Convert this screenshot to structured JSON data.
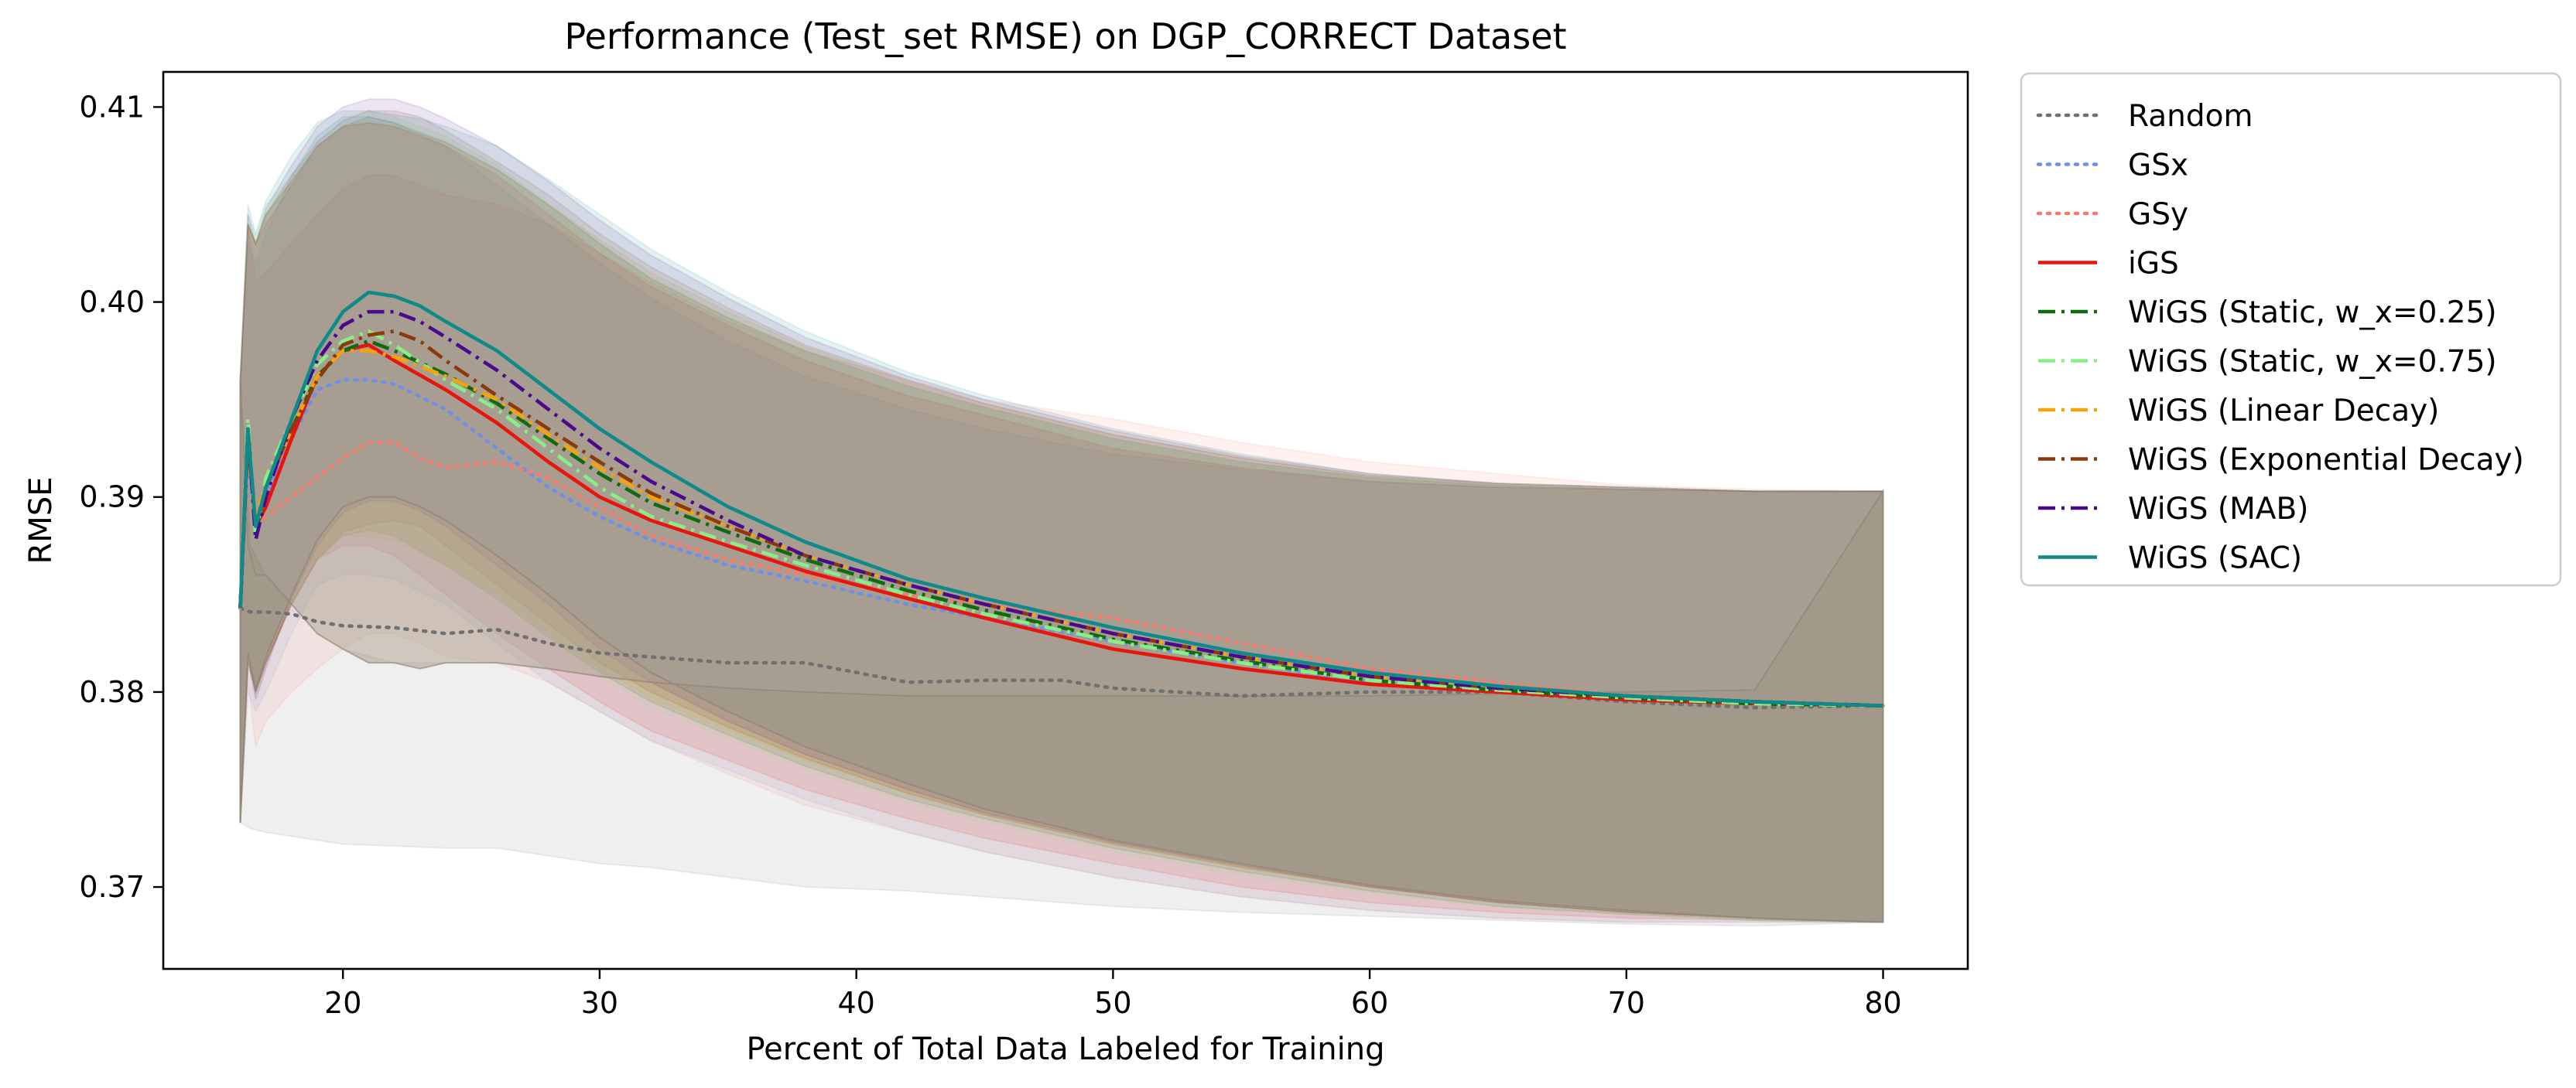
{
  "chart_data": {
    "type": "line",
    "title": "Performance (Test_set RMSE) on DGP_CORRECT Dataset",
    "xlabel": "Percent of Total Data Labeled for Training",
    "ylabel": "RMSE",
    "xlim": [
      13,
      83.3
    ],
    "ylim": [
      0.3658,
      0.4118
    ],
    "xticks": [
      20,
      30,
      40,
      50,
      60,
      70,
      80
    ],
    "xtick_labels": [
      "20",
      "30",
      "40",
      "50",
      "60",
      "70",
      "80"
    ],
    "yticks": [
      0.37,
      0.38,
      0.39,
      0.4,
      0.41
    ],
    "ytick_labels": [
      "0.37",
      "0.38",
      "0.39",
      "0.40",
      "0.41"
    ],
    "grid": false,
    "legend_position": "outside-right",
    "shaded_band": "mean ± std per series",
    "band_color": "#A59A8B",
    "series": [
      {
        "name": "Random",
        "color": "#707070",
        "dash": "dot",
        "x": [
          16,
          16.4,
          17,
          18,
          19,
          20,
          22,
          24,
          26,
          28,
          30,
          32,
          35,
          38,
          42,
          45,
          48,
          50,
          55,
          60,
          65,
          70,
          75,
          80
        ],
        "y": [
          0.3843,
          0.3841,
          0.3841,
          0.384,
          0.3836,
          0.3834,
          0.3833,
          0.383,
          0.3832,
          0.3825,
          0.382,
          0.3818,
          0.3815,
          0.3815,
          0.3805,
          0.3806,
          0.3806,
          0.3802,
          0.3798,
          0.38,
          0.38,
          0.3795,
          0.3792,
          0.3793
        ],
        "upper": [
          0.396,
          0.3875,
          0.386,
          0.3845,
          0.383,
          0.3822,
          0.3815,
          0.3815,
          0.3815,
          0.3812,
          0.3808,
          0.3805,
          0.3802,
          0.38,
          0.3798,
          0.3798,
          0.3798,
          0.3798,
          0.3798,
          0.3798,
          0.3799,
          0.38,
          0.3801,
          0.3903
        ],
        "lower": [
          0.3733,
          0.373,
          0.3728,
          0.3726,
          0.3724,
          0.3722,
          0.3721,
          0.372,
          0.372,
          0.3716,
          0.3712,
          0.371,
          0.3705,
          0.37,
          0.3698,
          0.3695,
          0.3692,
          0.369,
          0.3687,
          0.3685,
          0.3683,
          0.3681,
          0.368,
          0.3682
        ]
      },
      {
        "name": "GSx",
        "color": "#6F8FE8",
        "dash": "dot",
        "x": [
          16,
          16.3,
          16.6,
          17,
          18,
          19,
          20,
          21,
          22,
          24,
          26,
          28,
          30,
          32,
          35,
          38,
          42,
          45,
          50,
          55,
          60,
          65,
          70,
          75,
          80
        ],
        "y": [
          0.3843,
          0.392,
          0.3885,
          0.39,
          0.393,
          0.3955,
          0.396,
          0.396,
          0.3958,
          0.3945,
          0.3925,
          0.3905,
          0.389,
          0.3878,
          0.3865,
          0.3857,
          0.3845,
          0.3838,
          0.3826,
          0.3815,
          0.3805,
          0.38,
          0.3798,
          0.3795,
          0.3793
        ],
        "upper": [
          0.396,
          0.403,
          0.402,
          0.4035,
          0.4065,
          0.4085,
          0.4095,
          0.4095,
          0.4092,
          0.408,
          0.406,
          0.404,
          0.402,
          0.4002,
          0.398,
          0.3962,
          0.3945,
          0.3935,
          0.3922,
          0.3914,
          0.3908,
          0.3905,
          0.3904,
          0.3903,
          0.3903
        ],
        "lower": [
          0.3733,
          0.38,
          0.379,
          0.38,
          0.383,
          0.3855,
          0.386,
          0.386,
          0.3858,
          0.3845,
          0.3825,
          0.3805,
          0.379,
          0.3775,
          0.376,
          0.3745,
          0.3728,
          0.3718,
          0.3705,
          0.3695,
          0.3688,
          0.3684,
          0.3682,
          0.3682,
          0.3682
        ]
      },
      {
        "name": "GSy",
        "color": "#F47C6F",
        "dash": "dot",
        "x": [
          16,
          16.3,
          16.6,
          17,
          18,
          19,
          20,
          21,
          22,
          23,
          24,
          26,
          28,
          30,
          32,
          35,
          38,
          42,
          45,
          50,
          55,
          60,
          65,
          70,
          75,
          80
        ],
        "y": [
          0.3843,
          0.3925,
          0.3885,
          0.389,
          0.39,
          0.391,
          0.392,
          0.3928,
          0.3928,
          0.392,
          0.3915,
          0.3918,
          0.391,
          0.3895,
          0.388,
          0.3868,
          0.386,
          0.385,
          0.3845,
          0.3838,
          0.3825,
          0.3812,
          0.3805,
          0.3798,
          0.3795,
          0.3793
        ],
        "upper": [
          0.396,
          0.404,
          0.401,
          0.4015,
          0.403,
          0.4045,
          0.4058,
          0.4065,
          0.4065,
          0.406,
          0.4055,
          0.405,
          0.404,
          0.4025,
          0.401,
          0.399,
          0.3975,
          0.396,
          0.395,
          0.394,
          0.3928,
          0.3918,
          0.3912,
          0.3906,
          0.3904,
          0.3903
        ],
        "lower": [
          0.3733,
          0.3805,
          0.3772,
          0.3785,
          0.38,
          0.3812,
          0.3822,
          0.383,
          0.383,
          0.3825,
          0.3818,
          0.3815,
          0.3805,
          0.379,
          0.3775,
          0.3758,
          0.3742,
          0.3728,
          0.3718,
          0.3705,
          0.3695,
          0.3688,
          0.3684,
          0.3682,
          0.3682,
          0.3682
        ]
      },
      {
        "name": "iGS",
        "color": "#E8150F",
        "dash": "solid",
        "x": [
          16,
          16.3,
          16.6,
          17,
          18,
          19,
          20,
          21,
          22,
          24,
          26,
          28,
          30,
          32,
          35,
          38,
          42,
          45,
          50,
          55,
          60,
          65,
          70,
          75,
          80
        ],
        "y": [
          0.3843,
          0.3935,
          0.3885,
          0.3895,
          0.393,
          0.3962,
          0.3975,
          0.3978,
          0.397,
          0.3955,
          0.3938,
          0.3918,
          0.39,
          0.3888,
          0.3875,
          0.3862,
          0.3848,
          0.3838,
          0.3822,
          0.3812,
          0.3804,
          0.38,
          0.3796,
          0.3794,
          0.3793
        ],
        "upper": [
          0.396,
          0.404,
          0.403,
          0.404,
          0.406,
          0.408,
          0.409,
          0.4092,
          0.409,
          0.408,
          0.4065,
          0.4045,
          0.4025,
          0.4008,
          0.3988,
          0.397,
          0.3952,
          0.3942,
          0.3925,
          0.3915,
          0.3908,
          0.3905,
          0.3904,
          0.3903,
          0.3903
        ],
        "lower": [
          0.3733,
          0.382,
          0.38,
          0.3815,
          0.3845,
          0.3868,
          0.3875,
          0.3875,
          0.387,
          0.385,
          0.383,
          0.3812,
          0.3795,
          0.378,
          0.3765,
          0.375,
          0.3735,
          0.3725,
          0.3712,
          0.37,
          0.3692,
          0.3687,
          0.3684,
          0.3683,
          0.3682
        ]
      },
      {
        "name": "WiGS (Static, w_x=0.25)",
        "color": "#0E6B0E",
        "dash": "dashdot",
        "x": [
          16,
          16.3,
          16.6,
          17,
          18,
          19,
          20,
          21,
          22,
          24,
          26,
          28,
          30,
          32,
          35,
          38,
          42,
          45,
          50,
          55,
          60,
          65,
          70,
          75,
          80
        ],
        "y": [
          0.3843,
          0.3935,
          0.3882,
          0.3905,
          0.3935,
          0.3962,
          0.3975,
          0.398,
          0.3975,
          0.3963,
          0.3948,
          0.393,
          0.3912,
          0.3897,
          0.3882,
          0.3868,
          0.3852,
          0.3842,
          0.3827,
          0.3816,
          0.3806,
          0.3801,
          0.3797,
          0.3794,
          0.3793
        ],
        "upper": [
          0.396,
          0.404,
          0.403,
          0.4045,
          0.4062,
          0.408,
          0.409,
          0.4095,
          0.4092,
          0.4082,
          0.4068,
          0.405,
          0.403,
          0.4012,
          0.3992,
          0.3975,
          0.3957,
          0.3946,
          0.393,
          0.3918,
          0.391,
          0.3906,
          0.3904,
          0.3903,
          0.3903
        ],
        "lower": [
          0.3733,
          0.3815,
          0.38,
          0.3815,
          0.3845,
          0.3868,
          0.388,
          0.3883,
          0.388,
          0.3865,
          0.3848,
          0.3828,
          0.381,
          0.3795,
          0.3778,
          0.3762,
          0.3745,
          0.3735,
          0.372,
          0.3708,
          0.3698,
          0.369,
          0.3686,
          0.3683,
          0.3682
        ]
      },
      {
        "name": "WiGS (Static, w_x=0.75)",
        "color": "#88EE88",
        "dash": "dashdot",
        "x": [
          16,
          16.3,
          16.6,
          17,
          18,
          19,
          20,
          21,
          22,
          24,
          26,
          28,
          30,
          32,
          35,
          38,
          42,
          45,
          50,
          55,
          60,
          65,
          70,
          75,
          80
        ],
        "y": [
          0.3843,
          0.394,
          0.388,
          0.391,
          0.394,
          0.3968,
          0.398,
          0.3985,
          0.3978,
          0.396,
          0.3945,
          0.3925,
          0.3905,
          0.389,
          0.3877,
          0.3865,
          0.385,
          0.384,
          0.3826,
          0.3815,
          0.3806,
          0.3801,
          0.3797,
          0.3794,
          0.3793
        ],
        "upper": [
          0.396,
          0.4045,
          0.4035,
          0.405,
          0.4065,
          0.4085,
          0.4095,
          0.4098,
          0.4095,
          0.4085,
          0.407,
          0.405,
          0.403,
          0.4012,
          0.3992,
          0.3974,
          0.3956,
          0.3945,
          0.3929,
          0.3917,
          0.3909,
          0.3906,
          0.3904,
          0.3903,
          0.3903
        ],
        "lower": [
          0.3733,
          0.3818,
          0.3802,
          0.3818,
          0.3848,
          0.3872,
          0.3882,
          0.3885,
          0.388,
          0.3865,
          0.3848,
          0.3828,
          0.3808,
          0.3792,
          0.3776,
          0.376,
          0.3743,
          0.3733,
          0.3718,
          0.3706,
          0.3697,
          0.369,
          0.3686,
          0.3683,
          0.3682
        ]
      },
      {
        "name": "WiGS (Linear Decay)",
        "color": "#F5A30A",
        "dash": "dashdot",
        "x": [
          16,
          16.3,
          16.6,
          17,
          18,
          19,
          20,
          21,
          22,
          24,
          26,
          28,
          30,
          32,
          35,
          38,
          42,
          45,
          50,
          55,
          60,
          65,
          70,
          75,
          80
        ],
        "y": [
          0.3843,
          0.393,
          0.389,
          0.3905,
          0.3935,
          0.3962,
          0.3975,
          0.3975,
          0.3972,
          0.3962,
          0.395,
          0.3932,
          0.3915,
          0.39,
          0.3885,
          0.387,
          0.3855,
          0.3845,
          0.383,
          0.3818,
          0.3808,
          0.3803,
          0.3798,
          0.3795,
          0.3793
        ],
        "upper": [
          0.396,
          0.404,
          0.403,
          0.4045,
          0.4062,
          0.408,
          0.409,
          0.4092,
          0.409,
          0.4082,
          0.4068,
          0.405,
          0.4032,
          0.4015,
          0.3995,
          0.3977,
          0.3959,
          0.3948,
          0.3932,
          0.392,
          0.3911,
          0.3907,
          0.3905,
          0.3903,
          0.3903
        ],
        "lower": [
          0.3733,
          0.3815,
          0.38,
          0.3815,
          0.3845,
          0.3868,
          0.388,
          0.388,
          0.3878,
          0.3865,
          0.385,
          0.383,
          0.3812,
          0.3797,
          0.378,
          0.3765,
          0.3748,
          0.3737,
          0.3722,
          0.371,
          0.37,
          0.3692,
          0.3687,
          0.3684,
          0.3682
        ]
      },
      {
        "name": "WiGS (Exponential Decay)",
        "color": "#8B3A0B",
        "dash": "dashdot",
        "x": [
          16,
          16.3,
          16.6,
          17,
          18,
          19,
          20,
          21,
          22,
          23,
          24,
          26,
          28,
          30,
          32,
          35,
          38,
          42,
          45,
          50,
          55,
          60,
          65,
          70,
          75,
          80
        ],
        "y": [
          0.3843,
          0.393,
          0.3885,
          0.3905,
          0.3935,
          0.396,
          0.3978,
          0.3983,
          0.3985,
          0.398,
          0.397,
          0.3952,
          0.3935,
          0.3918,
          0.3902,
          0.3885,
          0.387,
          0.3855,
          0.3845,
          0.383,
          0.3818,
          0.3808,
          0.3802,
          0.3798,
          0.3795,
          0.3793
        ],
        "upper": [
          0.396,
          0.404,
          0.403,
          0.4045,
          0.4065,
          0.4082,
          0.4093,
          0.4098,
          0.4098,
          0.4095,
          0.4088,
          0.4072,
          0.4055,
          0.4035,
          0.4018,
          0.3997,
          0.3978,
          0.396,
          0.3948,
          0.3932,
          0.392,
          0.3911,
          0.3907,
          0.3905,
          0.3903,
          0.3903
        ],
        "lower": [
          0.3733,
          0.3815,
          0.38,
          0.3815,
          0.3845,
          0.3868,
          0.3882,
          0.3886,
          0.3888,
          0.3885,
          0.3875,
          0.3855,
          0.3835,
          0.3815,
          0.38,
          0.3782,
          0.3766,
          0.3748,
          0.3737,
          0.3722,
          0.371,
          0.37,
          0.3692,
          0.3687,
          0.3684,
          0.3682
        ]
      },
      {
        "name": "WiGS (MAB)",
        "color": "#4B0A8C",
        "dash": "dashdot",
        "x": [
          16,
          16.3,
          16.6,
          17,
          18,
          19,
          20,
          21,
          22,
          23,
          24,
          26,
          28,
          30,
          32,
          35,
          38,
          42,
          45,
          50,
          55,
          60,
          65,
          70,
          75,
          80
        ],
        "y": [
          0.3843,
          0.3935,
          0.3878,
          0.39,
          0.394,
          0.397,
          0.3988,
          0.3995,
          0.3995,
          0.399,
          0.3982,
          0.3965,
          0.3945,
          0.3925,
          0.3908,
          0.3888,
          0.387,
          0.3855,
          0.3845,
          0.383,
          0.3818,
          0.3808,
          0.3802,
          0.3798,
          0.3795,
          0.3793
        ],
        "upper": [
          0.396,
          0.4045,
          0.403,
          0.4048,
          0.407,
          0.409,
          0.41,
          0.4104,
          0.4104,
          0.41,
          0.4094,
          0.408,
          0.4062,
          0.4042,
          0.4024,
          0.4002,
          0.3982,
          0.3962,
          0.395,
          0.3934,
          0.3921,
          0.3912,
          0.3907,
          0.3905,
          0.3903,
          0.3903
        ],
        "lower": [
          0.3733,
          0.3818,
          0.3796,
          0.3812,
          0.3848,
          0.3875,
          0.3892,
          0.3898,
          0.3898,
          0.3893,
          0.3885,
          0.3865,
          0.3845,
          0.3822,
          0.3805,
          0.3785,
          0.3768,
          0.375,
          0.3738,
          0.3723,
          0.3711,
          0.37,
          0.3692,
          0.3687,
          0.3684,
          0.3682
        ]
      },
      {
        "name": "WiGS (SAC)",
        "color": "#0F8A8A",
        "dash": "solid",
        "x": [
          16,
          16.3,
          16.6,
          17,
          18,
          19,
          20,
          21,
          22,
          23,
          24,
          26,
          28,
          30,
          32,
          35,
          38,
          42,
          45,
          50,
          55,
          60,
          65,
          70,
          75,
          80
        ],
        "y": [
          0.3843,
          0.3935,
          0.3885,
          0.3905,
          0.394,
          0.3975,
          0.3995,
          0.4005,
          0.4003,
          0.3998,
          0.399,
          0.3975,
          0.3955,
          0.3935,
          0.3918,
          0.3895,
          0.3877,
          0.3858,
          0.3848,
          0.3833,
          0.382,
          0.381,
          0.3803,
          0.3798,
          0.3795,
          0.3793
        ],
        "upper": [
          0.396,
          0.405,
          0.4035,
          0.4052,
          0.4075,
          0.4092,
          0.4098,
          0.4098,
          0.4096,
          0.4094,
          0.409,
          0.408,
          0.4063,
          0.4045,
          0.4027,
          0.4005,
          0.3985,
          0.3964,
          0.3952,
          0.3935,
          0.3922,
          0.3912,
          0.3907,
          0.3905,
          0.3903,
          0.3903
        ],
        "lower": [
          0.3733,
          0.382,
          0.38,
          0.3818,
          0.385,
          0.3878,
          0.3895,
          0.39,
          0.39,
          0.3895,
          0.3888,
          0.387,
          0.385,
          0.3828,
          0.381,
          0.379,
          0.3772,
          0.3753,
          0.374,
          0.3724,
          0.3712,
          0.3701,
          0.3693,
          0.3688,
          0.3684,
          0.3682
        ]
      }
    ]
  }
}
